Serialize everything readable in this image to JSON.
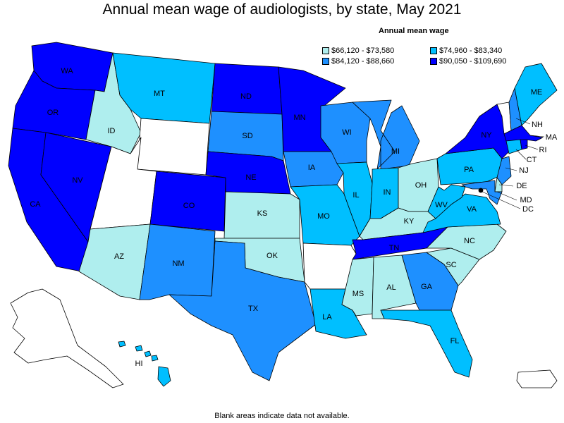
{
  "title": "Annual mean wage of audiologists, by state, May 2021",
  "legend": {
    "title": "Annual mean wage",
    "bins": [
      {
        "label": "$66,120 - $73,580",
        "color": "#afeeee"
      },
      {
        "label": "$74,960 - $83,340",
        "color": "#00bfff"
      },
      {
        "label": "$84,120 - $88,660",
        "color": "#1e90ff"
      },
      {
        "label": "$90,050 - $109,690",
        "color": "#0000ff"
      }
    ]
  },
  "no_data_color": "#ffffff",
  "footnote": "Blank areas indicate data not available.",
  "states": {
    "WA": 3,
    "OR": 3,
    "CA": 3,
    "NV": 3,
    "ID": 0,
    "MT": 1,
    "WY": -1,
    "UT": -1,
    "AZ": 0,
    "CO": 3,
    "NM": 2,
    "ND": 3,
    "SD": 2,
    "NE": 3,
    "KS": 0,
    "OK": 0,
    "TX": 2,
    "MN": 3,
    "IA": 2,
    "MO": 1,
    "AR": -1,
    "LA": 1,
    "WI": 2,
    "IL": 1,
    "MI": 2,
    "IN": 1,
    "OH": 0,
    "KY": 0,
    "TN": 3,
    "MS": 0,
    "AL": 0,
    "GA": 2,
    "FL": 1,
    "SC": 0,
    "NC": 0,
    "VA": 1,
    "WV": 1,
    "PA": 1,
    "NY": 3,
    "VT": -1,
    "NH": 2,
    "ME": 1,
    "MA": 3,
    "RI": 3,
    "CT": 1,
    "NJ": 2,
    "DE": 0,
    "MD": 2,
    "DC": 3,
    "AK": -1,
    "HI": 1,
    "PR": -1
  },
  "labels": {
    "WA": "WA",
    "OR": "OR",
    "CA": "CA",
    "NV": "NV",
    "ID": "ID",
    "MT": "MT",
    "AZ": "AZ",
    "CO": "CO",
    "NM": "NM",
    "ND": "ND",
    "SD": "SD",
    "NE": "NE",
    "KS": "KS",
    "OK": "OK",
    "TX": "TX",
    "MN": "MN",
    "IA": "IA",
    "MO": "MO",
    "LA": "LA",
    "WI": "WI",
    "IL": "IL",
    "MI": "MI",
    "IN": "IN",
    "OH": "OH",
    "KY": "KY",
    "TN": "TN",
    "MS": "MS",
    "AL": "AL",
    "GA": "GA",
    "FL": "FL",
    "SC": "SC",
    "NC": "NC",
    "VA": "VA",
    "WV": "WV",
    "PA": "PA",
    "NY": "NY",
    "ME": "ME",
    "HI": "HI",
    "NH": "NH",
    "MA": "MA",
    "RI": "RI",
    "CT": "CT",
    "NJ": "NJ",
    "DE": "DE",
    "MD": "MD",
    "DC": "DC"
  }
}
